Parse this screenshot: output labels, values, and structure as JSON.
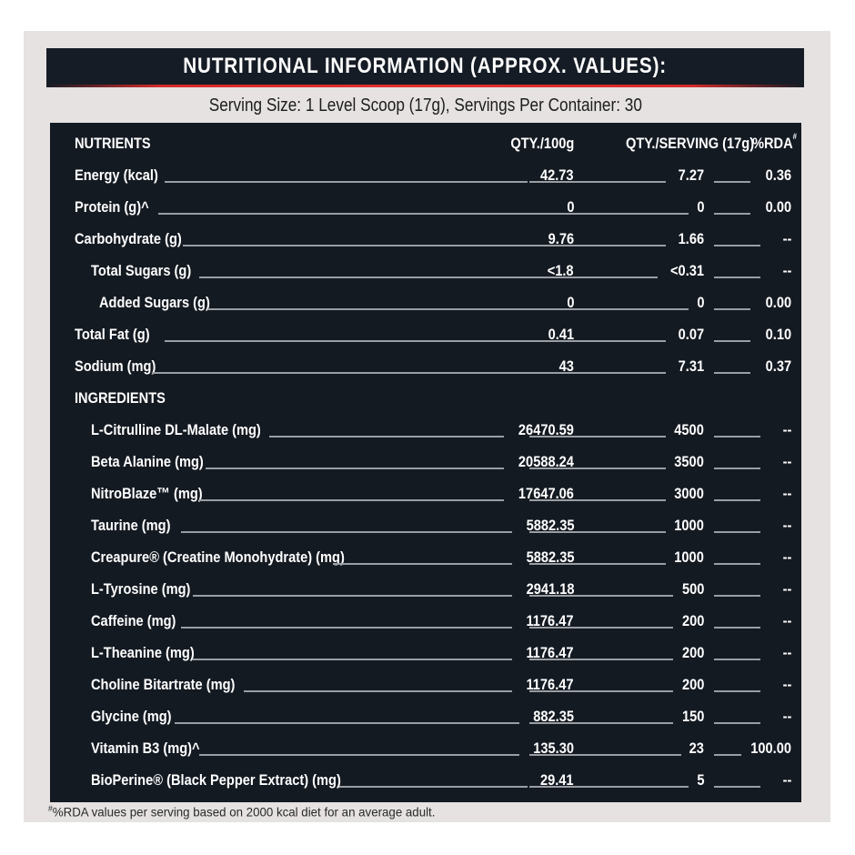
{
  "header": {
    "title": "NUTRITIONAL INFORMATION (APPROX. VALUES):",
    "serving_info": "Serving Size: 1 Level Scoop (17g), Servings Per Container: 30"
  },
  "colors": {
    "panel_bg": "#e5e2e1",
    "table_bg": "#141a22",
    "accent_red": "#e0302c",
    "leader_line": "#9a9ea4"
  },
  "table": {
    "columns": {
      "nutrients": "NUTRIENTS",
      "qty_100g": "QTY./100g",
      "qty_serving": "QTY./SERVING (17g)",
      "rda": "%RDA",
      "rda_mark": "#"
    },
    "nutrients": [
      {
        "name": "Energy (kcal)",
        "qty_100g": "42.73",
        "qty_serving": "7.27",
        "rda": "0.36"
      },
      {
        "name": "Protein (g)^",
        "qty_100g": "0",
        "qty_serving": "0",
        "rda": "0.00"
      },
      {
        "name": "Carbohydrate (g)",
        "qty_100g": "9.76",
        "qty_serving": "1.66",
        "rda": "--"
      },
      {
        "name": "Total Sugars (g)",
        "qty_100g": "<1.8",
        "qty_serving": "<0.31",
        "rda": "--"
      },
      {
        "name": "Added Sugars (g)",
        "qty_100g": "0",
        "qty_serving": "0",
        "rda": "0.00"
      },
      {
        "name": "Total Fat (g)",
        "qty_100g": "0.41",
        "qty_serving": "0.07",
        "rda": "0.10"
      },
      {
        "name": "Sodium (mg)",
        "qty_100g": "43",
        "qty_serving": "7.31",
        "rda": "0.37"
      }
    ],
    "ingredients_heading": "INGREDIENTS",
    "ingredients": [
      {
        "name": "L-Citrulline DL-Malate (mg)",
        "qty_100g": "26470.59",
        "qty_serving": "4500",
        "rda": "--"
      },
      {
        "name": "Beta Alanine (mg)",
        "qty_100g": "20588.24",
        "qty_serving": "3500",
        "rda": "--"
      },
      {
        "name": "NitroBlaze™ (mg)",
        "qty_100g": "17647.06",
        "qty_serving": "3000",
        "rda": "--"
      },
      {
        "name": "Taurine  (mg)",
        "qty_100g": "5882.35",
        "qty_serving": "1000",
        "rda": "--"
      },
      {
        "name": "Creapure® (Creatine Monohydrate) (mg)",
        "qty_100g": "5882.35",
        "qty_serving": "1000",
        "rda": "--"
      },
      {
        "name": "L-Tyrosine (mg)",
        "qty_100g": "2941.18",
        "qty_serving": "500",
        "rda": "--"
      },
      {
        "name": "Caffeine (mg)",
        "qty_100g": "1176.47",
        "qty_serving": "200",
        "rda": "--"
      },
      {
        "name": "L-Theanine (mg)",
        "qty_100g": "1176.47",
        "qty_serving": "200",
        "rda": "--"
      },
      {
        "name": "Choline Bitartrate (mg)",
        "qty_100g": "1176.47",
        "qty_serving": "200",
        "rda": "--"
      },
      {
        "name": "Glycine (mg)",
        "qty_100g": "882.35",
        "qty_serving": "150",
        "rda": "--"
      },
      {
        "name": "Vitamin B3 (mg)^",
        "qty_100g": "135.30",
        "qty_serving": "23",
        "rda": "100.00"
      },
      {
        "name": "BioPerine® (Black Pepper Extract) (mg)",
        "qty_100g": "29.41",
        "qty_serving": "5",
        "rda": "--"
      }
    ]
  },
  "footnote": {
    "mark": "#",
    "text": "%RDA values per serving based on 2000 kcal diet for an average adult."
  }
}
